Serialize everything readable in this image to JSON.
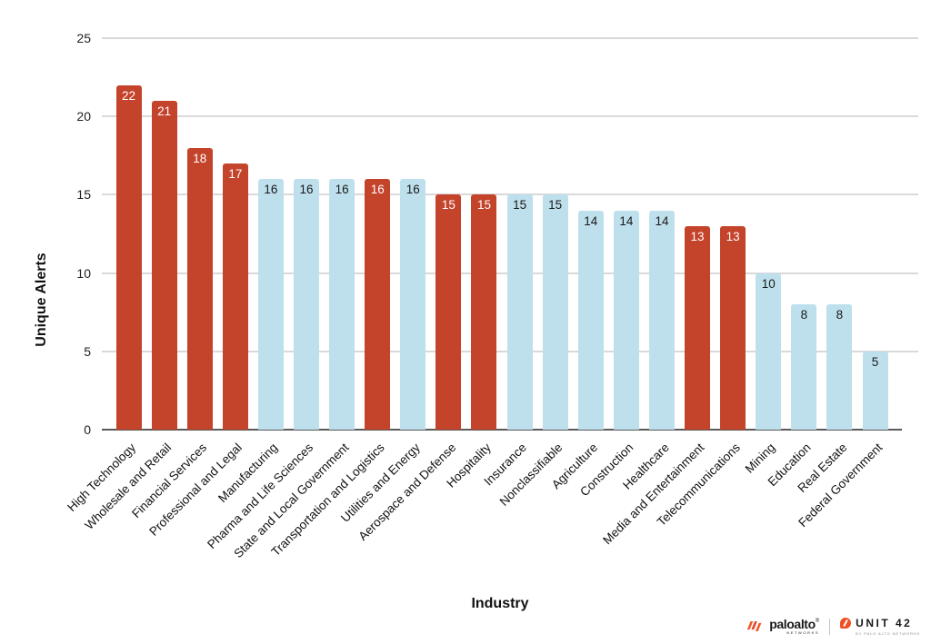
{
  "chart_data": {
    "type": "bar",
    "title": "",
    "xlabel": "Industry",
    "ylabel": "Unique Alerts",
    "ylim": [
      0,
      25
    ],
    "yticks": [
      0,
      5,
      10,
      15,
      20,
      25
    ],
    "grid": true,
    "legend": false,
    "bar_colors": {
      "highlight": "#c4432b",
      "default": "#bedfec"
    },
    "value_label_colors": {
      "highlight": "#ffffff",
      "default": "#1a1a1a"
    },
    "bars": [
      {
        "label": "High Technology",
        "value": 22,
        "highlight": true
      },
      {
        "label": "Wholesale and Retail",
        "value": 21,
        "highlight": true
      },
      {
        "label": "Financial Services",
        "value": 18,
        "highlight": true
      },
      {
        "label": "Professional and Legal",
        "value": 17,
        "highlight": true
      },
      {
        "label": "Manufacturing",
        "value": 16,
        "highlight": false
      },
      {
        "label": "Pharma and Life Sciences",
        "value": 16,
        "highlight": false
      },
      {
        "label": "State and Local Government",
        "value": 16,
        "highlight": false
      },
      {
        "label": "Transportation and Logistics",
        "value": 16,
        "highlight": true
      },
      {
        "label": "Utilities and Energy",
        "value": 16,
        "highlight": false
      },
      {
        "label": "Aerospace and Defense",
        "value": 15,
        "highlight": true
      },
      {
        "label": "Hospitality",
        "value": 15,
        "highlight": true
      },
      {
        "label": "Insurance",
        "value": 15,
        "highlight": false
      },
      {
        "label": "Nonclassifiable",
        "value": 15,
        "highlight": false
      },
      {
        "label": "Agriculture",
        "value": 14,
        "highlight": false
      },
      {
        "label": "Construction",
        "value": 14,
        "highlight": false
      },
      {
        "label": "Healthcare",
        "value": 14,
        "highlight": false
      },
      {
        "label": "Media and Entertainment",
        "value": 13,
        "highlight": true
      },
      {
        "label": "Telecommunications",
        "value": 13,
        "highlight": true
      },
      {
        "label": "Mining",
        "value": 10,
        "highlight": false
      },
      {
        "label": "Education",
        "value": 8,
        "highlight": false
      },
      {
        "label": "Real Estate",
        "value": 8,
        "highlight": false
      },
      {
        "label": "Federal Government",
        "value": 5,
        "highlight": false
      }
    ]
  },
  "footer": {
    "paloalto_text": "paloalto",
    "paloalto_reg": "®",
    "paloalto_sub": "NETWORKS",
    "unit42_text": "UNIT 42",
    "unit42_sub": "BY PALO ALTO NETWORKS"
  }
}
